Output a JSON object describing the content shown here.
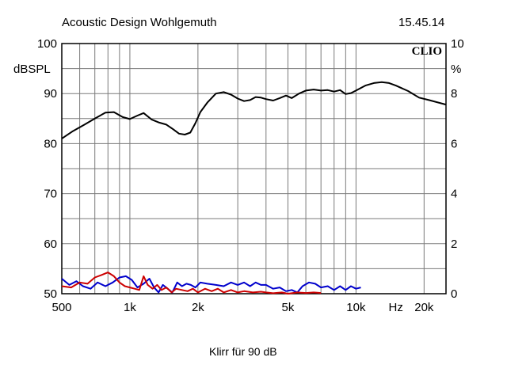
{
  "header": {
    "title": "Acoustic Design Wohlgemuth",
    "time": "15.45.14"
  },
  "brand": "CLIO",
  "footer": {
    "caption": "Klirr für 90 dB"
  },
  "chart_data": {
    "type": "line",
    "xscale": "log",
    "xlim": [
      500,
      25000
    ],
    "ylim_left": [
      50,
      100
    ],
    "ylim_right": [
      0,
      10
    ],
    "ylabel_left": "dBSPL",
    "ylabel_right": "%",
    "grid": true,
    "x_tick_labels": [
      {
        "x": 500,
        "label": "500"
      },
      {
        "x": 1000,
        "label": "1k"
      },
      {
        "x": 2000,
        "label": "2k"
      },
      {
        "x": 5000,
        "label": "5k"
      },
      {
        "x": 10000,
        "label": "10k"
      },
      {
        "x": 15000,
        "label": "Hz"
      },
      {
        "x": 20000,
        "label": "20k"
      }
    ],
    "y_left_ticks": [
      50,
      60,
      70,
      80,
      90,
      100
    ],
    "y_right_ticks": [
      0,
      2,
      4,
      6,
      8,
      10
    ],
    "series": [
      {
        "color": "#000000",
        "axis": "left",
        "points": [
          [
            500,
            81
          ],
          [
            560,
            82.5
          ],
          [
            630,
            83.8
          ],
          [
            700,
            85
          ],
          [
            780,
            86.2
          ],
          [
            850,
            86.3
          ],
          [
            930,
            85.3
          ],
          [
            1000,
            84.9
          ],
          [
            1080,
            85.6
          ],
          [
            1150,
            86.1
          ],
          [
            1250,
            84.8
          ],
          [
            1350,
            84.2
          ],
          [
            1450,
            83.8
          ],
          [
            1550,
            82.9
          ],
          [
            1650,
            82
          ],
          [
            1750,
            81.8
          ],
          [
            1850,
            82.2
          ],
          [
            1950,
            84.1
          ],
          [
            2050,
            86.3
          ],
          [
            2200,
            88.2
          ],
          [
            2400,
            90
          ],
          [
            2600,
            90.3
          ],
          [
            2800,
            89.8
          ],
          [
            3000,
            89
          ],
          [
            3200,
            88.5
          ],
          [
            3400,
            88.7
          ],
          [
            3600,
            89.3
          ],
          [
            3800,
            89.2
          ],
          [
            4000,
            88.9
          ],
          [
            4300,
            88.6
          ],
          [
            4600,
            89.1
          ],
          [
            4900,
            89.6
          ],
          [
            5200,
            89.1
          ],
          [
            5600,
            90
          ],
          [
            6000,
            90.6
          ],
          [
            6500,
            90.8
          ],
          [
            7000,
            90.6
          ],
          [
            7500,
            90.7
          ],
          [
            8000,
            90.4
          ],
          [
            8500,
            90.7
          ],
          [
            9000,
            89.9
          ],
          [
            9500,
            90.1
          ],
          [
            10000,
            90.6
          ],
          [
            11000,
            91.6
          ],
          [
            12000,
            92.1
          ],
          [
            13000,
            92.3
          ],
          [
            14000,
            92.1
          ],
          [
            15000,
            91.6
          ],
          [
            17000,
            90.5
          ],
          [
            19000,
            89.2
          ],
          [
            21000,
            88.7
          ],
          [
            25000,
            87.8
          ]
        ]
      },
      {
        "color": "#0000cc",
        "axis": "right",
        "points": [
          [
            500,
            0.6
          ],
          [
            540,
            0.35
          ],
          [
            580,
            0.5
          ],
          [
            620,
            0.3
          ],
          [
            670,
            0.2
          ],
          [
            720,
            0.45
          ],
          [
            780,
            0.3
          ],
          [
            840,
            0.45
          ],
          [
            900,
            0.65
          ],
          [
            960,
            0.7
          ],
          [
            1020,
            0.55
          ],
          [
            1080,
            0.25
          ],
          [
            1150,
            0.4
          ],
          [
            1220,
            0.6
          ],
          [
            1280,
            0.25
          ],
          [
            1340,
            0.05
          ],
          [
            1400,
            0.35
          ],
          [
            1470,
            0.2
          ],
          [
            1540,
            0.05
          ],
          [
            1620,
            0.45
          ],
          [
            1700,
            0.3
          ],
          [
            1780,
            0.4
          ],
          [
            1860,
            0.35
          ],
          [
            1950,
            0.25
          ],
          [
            2050,
            0.45
          ],
          [
            2200,
            0.4
          ],
          [
            2400,
            0.35
          ],
          [
            2600,
            0.3
          ],
          [
            2800,
            0.45
          ],
          [
            3000,
            0.35
          ],
          [
            3200,
            0.45
          ],
          [
            3400,
            0.3
          ],
          [
            3600,
            0.45
          ],
          [
            3800,
            0.35
          ],
          [
            4000,
            0.35
          ],
          [
            4300,
            0.2
          ],
          [
            4600,
            0.25
          ],
          [
            4900,
            0.1
          ],
          [
            5200,
            0.15
          ],
          [
            5500,
            0.05
          ],
          [
            5800,
            0.3
          ],
          [
            6200,
            0.45
          ],
          [
            6600,
            0.4
          ],
          [
            7000,
            0.25
          ],
          [
            7500,
            0.3
          ],
          [
            8000,
            0.15
          ],
          [
            8500,
            0.3
          ],
          [
            9000,
            0.15
          ],
          [
            9500,
            0.3
          ],
          [
            10000,
            0.2
          ],
          [
            10500,
            0.25
          ]
        ]
      },
      {
        "color": "#cc0000",
        "axis": "right",
        "points": [
          [
            500,
            0.3
          ],
          [
            550,
            0.25
          ],
          [
            600,
            0.45
          ],
          [
            650,
            0.4
          ],
          [
            700,
            0.65
          ],
          [
            750,
            0.75
          ],
          [
            800,
            0.85
          ],
          [
            850,
            0.7
          ],
          [
            900,
            0.45
          ],
          [
            950,
            0.3
          ],
          [
            1000,
            0.25
          ],
          [
            1050,
            0.2
          ],
          [
            1100,
            0.15
          ],
          [
            1150,
            0.7
          ],
          [
            1200,
            0.35
          ],
          [
            1260,
            0.2
          ],
          [
            1320,
            0.35
          ],
          [
            1380,
            0.15
          ],
          [
            1450,
            0.25
          ],
          [
            1530,
            0.05
          ],
          [
            1600,
            0.2
          ],
          [
            1700,
            0.15
          ],
          [
            1800,
            0.1
          ],
          [
            1900,
            0.2
          ],
          [
            2000,
            0.05
          ],
          [
            2150,
            0.2
          ],
          [
            2300,
            0.1
          ],
          [
            2450,
            0.2
          ],
          [
            2600,
            0.05
          ],
          [
            2800,
            0.15
          ],
          [
            3000,
            0.05
          ],
          [
            3200,
            0.1
          ],
          [
            3500,
            0.05
          ],
          [
            3800,
            0.08
          ],
          [
            4000,
            0.05
          ],
          [
            4300,
            0.02
          ],
          [
            4700,
            0.05
          ],
          [
            5000,
            0.0
          ],
          [
            5500,
            0.05
          ],
          [
            6000,
            0.03
          ],
          [
            6500,
            0.05
          ],
          [
            7000,
            0.03
          ]
        ]
      }
    ]
  }
}
